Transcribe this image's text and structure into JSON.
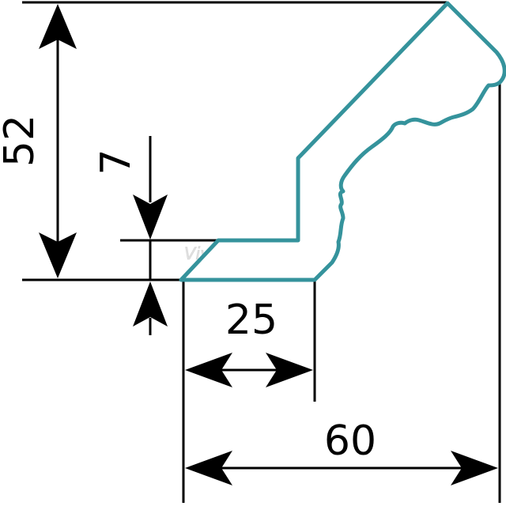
{
  "profile": {
    "stroke_color": "#35939c"
  },
  "dimensions": {
    "height_total": "52",
    "lip_height": "7",
    "base_width": "25",
    "total_width": "60"
  },
  "watermark": {
    "text": "VivaKitchen©"
  }
}
